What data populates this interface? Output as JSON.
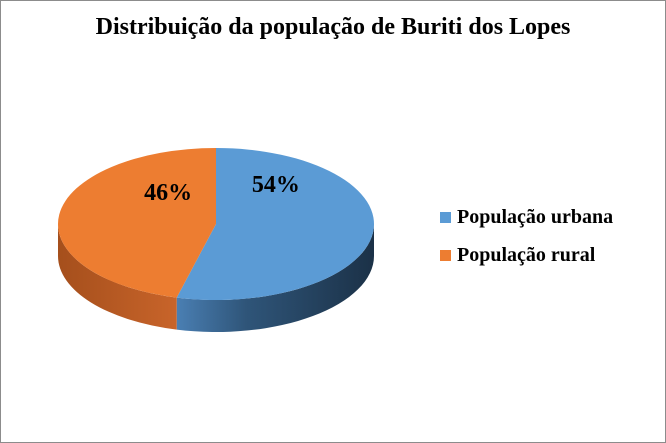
{
  "chart_data": {
    "type": "pie",
    "title": "Distribuição da população de Buriti dos Lopes",
    "series": [
      {
        "name": "População urbana",
        "value": 54,
        "label": "54%",
        "color": "#5B9BD5"
      },
      {
        "name": "População rural",
        "value": 46,
        "label": "46%",
        "color": "#ED7D31"
      }
    ],
    "legend_position": "right",
    "style": "3d"
  }
}
